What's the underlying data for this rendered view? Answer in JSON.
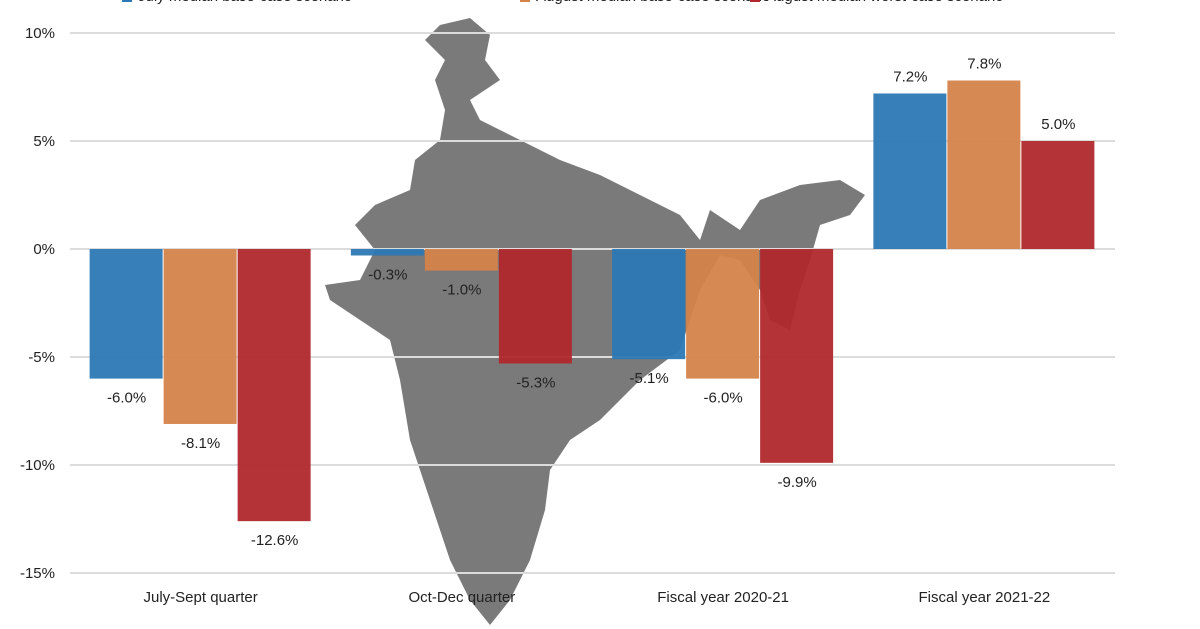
{
  "chart_data": {
    "type": "bar",
    "categories": [
      "July-Sept quarter",
      "Oct-Dec quarter",
      "Fiscal year 2020-21",
      "Fiscal year 2021-22"
    ],
    "series": [
      {
        "name": "July median base-case scenario",
        "color": "#2b78b4",
        "values": [
          -6.0,
          -0.3,
          -5.1,
          7.2
        ],
        "labels": [
          "-6.0%",
          "-0.3%",
          "-5.1%",
          "7.2%"
        ]
      },
      {
        "name": "August median base-case scenario",
        "color": "#d4834a",
        "values": [
          -8.1,
          -1.0,
          -6.0,
          7.8
        ],
        "labels": [
          "-8.1%",
          "-1.0%",
          "-6.0%",
          "7.8%"
        ]
      },
      {
        "name": "August median worst-case scenario",
        "color": "#b0282c",
        "values": [
          -12.6,
          -5.3,
          -9.9,
          5.0
        ],
        "labels": [
          "-12.6%",
          "-5.3%",
          "-9.9%",
          "5.0%"
        ]
      }
    ],
    "yticks": [
      "10%",
      "5%",
      "0%",
      "-5%",
      "-10%",
      "-15%"
    ],
    "ytick_values": [
      10,
      5,
      0,
      -5,
      -10,
      -15
    ],
    "ylim": [
      -15,
      10
    ],
    "grid": true,
    "legend": "top",
    "background_image": "india-map-silhouette"
  }
}
